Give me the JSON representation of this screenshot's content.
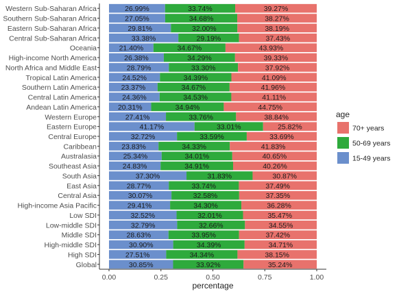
{
  "chart_data": {
    "type": "bar",
    "orientation": "horizontal",
    "stacked": "percent",
    "xlabel": "percentage",
    "ylabel": "",
    "xlim": [
      0,
      1
    ],
    "x_ticks": [
      "0.00",
      "0.25",
      "0.50",
      "0.75",
      "1.00"
    ],
    "legend": {
      "title": "age",
      "position": "right",
      "entries": [
        {
          "name": "70+ years",
          "color": "#e8726c"
        },
        {
          "name": "50-69 years",
          "color": "#2eaa3c"
        },
        {
          "name": "15-49 years",
          "color": "#6b8fcc"
        }
      ]
    },
    "categories": [
      "Western Sub-Saharan Africa",
      "Southern Sub-Saharan Africa",
      "Eastern Sub-Saharan Africa",
      "Central Sub-Saharan Africa",
      "Oceania",
      "High-income North America",
      "North Africa and Middle East",
      "Tropical Latin America",
      "Southern Latin America",
      "Central Latin America",
      "Andean Latin America",
      "Western Europe",
      "Eastern Europe",
      "Central Europe",
      "Caribbean",
      "Australasia",
      "Southeast Asia",
      "South Asia",
      "East Asia",
      "Central Asia",
      "High-income Asia Pacific",
      "Low SDI",
      "Low-middle SDI",
      "Middle SDI",
      "High-middle SDI",
      "High SDI",
      "Global"
    ],
    "series": [
      {
        "name": "15-49 years",
        "color": "#6b8fcc",
        "labels": [
          "26.99%",
          "27.05%",
          "29.81%",
          "33.38%",
          "21.40%",
          "26.38%",
          "28.79%",
          "24.52%",
          "23.37%",
          "24.36%",
          "20.31%",
          "27.41%",
          "41.17%",
          "32.72%",
          "23.83%",
          "25.34%",
          "24.83%",
          "37.30%",
          "28.77%",
          "30.07%",
          "29.41%",
          "32.52%",
          "32.79%",
          "28.63%",
          "30.90%",
          "27.51%",
          "30.85%"
        ],
        "values": [
          0.2699,
          0.2705,
          0.2981,
          0.3338,
          0.214,
          0.2638,
          0.2879,
          0.2452,
          0.2337,
          0.2436,
          0.2031,
          0.2741,
          0.4117,
          0.3272,
          0.2383,
          0.2534,
          0.2483,
          0.373,
          0.2877,
          0.3007,
          0.2941,
          0.3252,
          0.3279,
          0.2863,
          0.309,
          0.2751,
          0.3085
        ]
      },
      {
        "name": "50-69 years",
        "color": "#2eaa3c",
        "labels": [
          "33.74%",
          "34.68%",
          "32.00%",
          "29.19%",
          "34.67%",
          "34.29%",
          "33.30%",
          "34.39%",
          "34.67%",
          "34.53%",
          "34.94%",
          "33.76%",
          "33.01%",
          "33.59%",
          "34.33%",
          "34.01%",
          "34.91%",
          "31.83%",
          "33.74%",
          "32.58%",
          "34.30%",
          "32.01%",
          "32.66%",
          "33.95%",
          "34.39%",
          "34.34%",
          "33.92%"
        ],
        "values": [
          0.3374,
          0.3468,
          0.32,
          0.2919,
          0.3467,
          0.3429,
          0.333,
          0.3439,
          0.3467,
          0.3453,
          0.3494,
          0.3376,
          0.3301,
          0.3359,
          0.3433,
          0.3401,
          0.3491,
          0.3183,
          0.3374,
          0.3258,
          0.343,
          0.3201,
          0.3266,
          0.3395,
          0.3439,
          0.3434,
          0.3392
        ]
      },
      {
        "name": "70+ years",
        "color": "#e8726c",
        "labels": [
          "39.27%",
          "38.27%",
          "38.19%",
          "37.43%",
          "43.93%",
          "39.33%",
          "37.92%",
          "41.09%",
          "41.96%",
          "41.11%",
          "44.75%",
          "38.84%",
          "25.82%",
          "33.69%",
          "41.83%",
          "40.65%",
          "40.26%",
          "30.87%",
          "37.49%",
          "37.35%",
          "36.28%",
          "35.47%",
          "34.55%",
          "37.42%",
          "34.71%",
          "38.15%",
          "35.24%"
        ],
        "values": [
          0.3927,
          0.3827,
          0.3819,
          0.3743,
          0.4393,
          0.3933,
          0.3792,
          0.4109,
          0.4196,
          0.4111,
          0.4475,
          0.3884,
          0.2582,
          0.3369,
          0.4183,
          0.4065,
          0.4026,
          0.3087,
          0.3749,
          0.3735,
          0.3628,
          0.3547,
          0.3455,
          0.3742,
          0.3471,
          0.3815,
          0.3524
        ]
      }
    ]
  }
}
